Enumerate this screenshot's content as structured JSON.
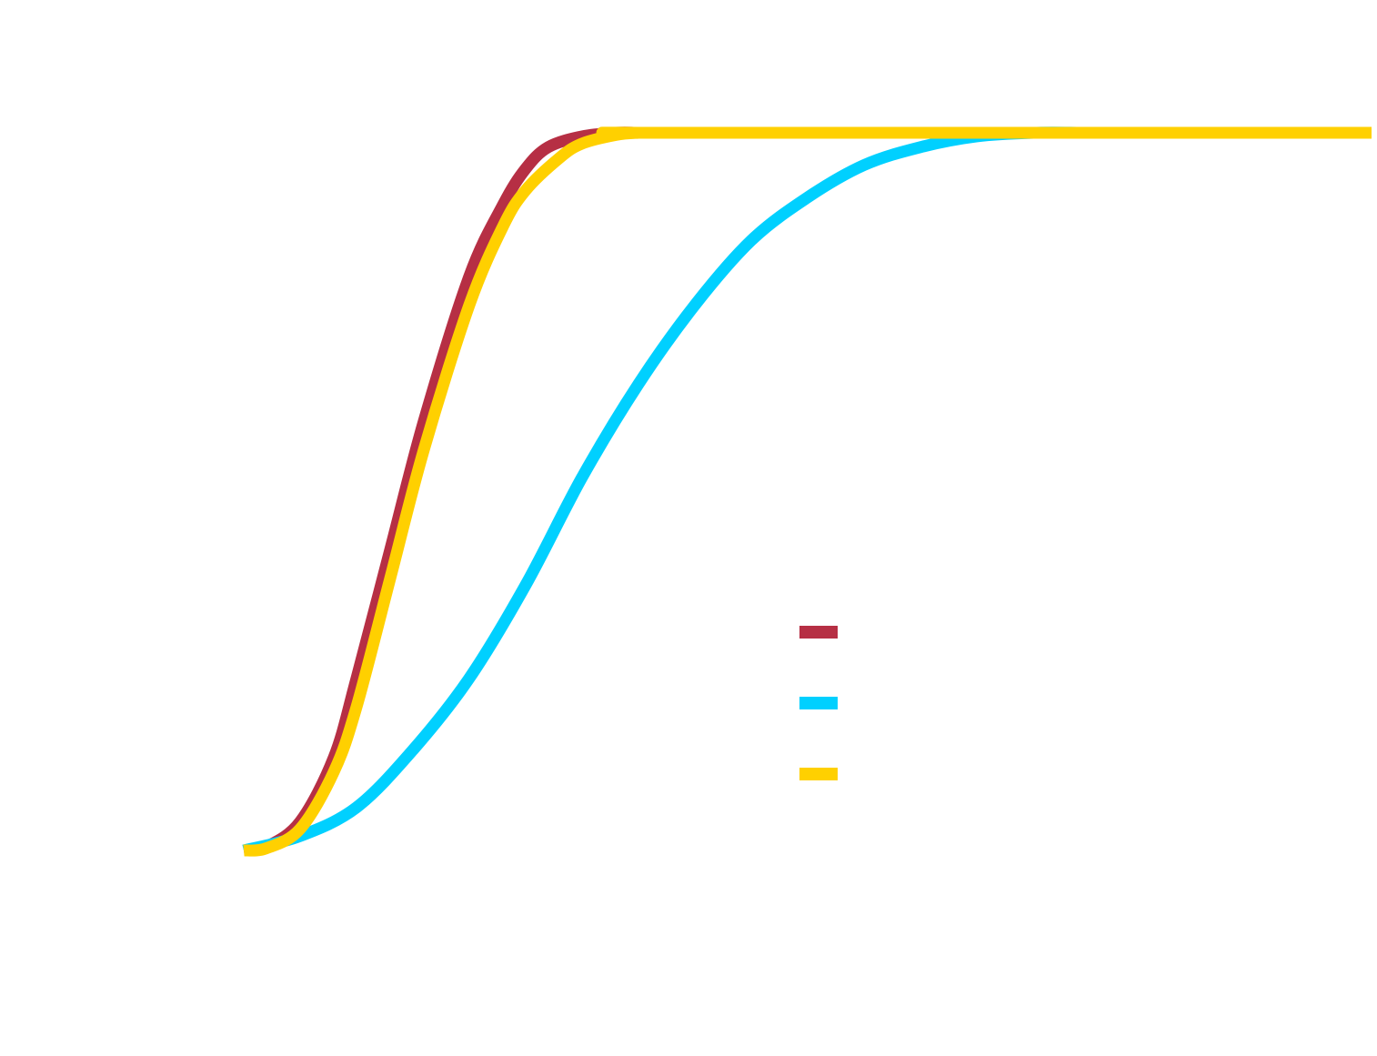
{
  "chart_data": {
    "type": "line",
    "title": "",
    "xlabel": "",
    "ylabel": "",
    "grid": false,
    "axes_visible": false,
    "legend_position": "center-right",
    "xlim": [
      0,
      1
    ],
    "ylim": [
      0,
      1
    ],
    "series": [
      {
        "color": "#b62f44",
        "legend_text": "",
        "x": [
          0,
          0.02,
          0.05,
          0.08,
          0.1,
          0.13,
          0.16,
          0.2,
          0.23,
          0.25,
          0.27,
          0.3,
          0.33,
          0.35,
          0.37,
          1
        ],
        "y": [
          0,
          0.005,
          0.04,
          0.13,
          0.24,
          0.42,
          0.6,
          0.8,
          0.9,
          0.95,
          0.98,
          0.995,
          1,
          1,
          1,
          1
        ]
      },
      {
        "color": "#00d0ff",
        "legend_text": "",
        "x": [
          0,
          0.05,
          0.1,
          0.15,
          0.2,
          0.25,
          0.3,
          0.35,
          0.4,
          0.45,
          0.5,
          0.55,
          0.6,
          0.65,
          0.7,
          0.75,
          0.8,
          1
        ],
        "y": [
          0,
          0.02,
          0.06,
          0.14,
          0.24,
          0.37,
          0.52,
          0.65,
          0.76,
          0.85,
          0.91,
          0.955,
          0.98,
          0.995,
          1,
          1,
          1,
          1
        ]
      },
      {
        "color": "#ffd000",
        "legend_text": "",
        "x": [
          0,
          0.02,
          0.05,
          0.08,
          0.1,
          0.13,
          0.16,
          0.2,
          0.23,
          0.25,
          0.28,
          0.3,
          0.33,
          0.35,
          0.37,
          1
        ],
        "y": [
          0,
          0.003,
          0.03,
          0.11,
          0.2,
          0.38,
          0.56,
          0.76,
          0.87,
          0.92,
          0.965,
          0.985,
          0.997,
          1,
          1,
          1
        ]
      }
    ]
  }
}
